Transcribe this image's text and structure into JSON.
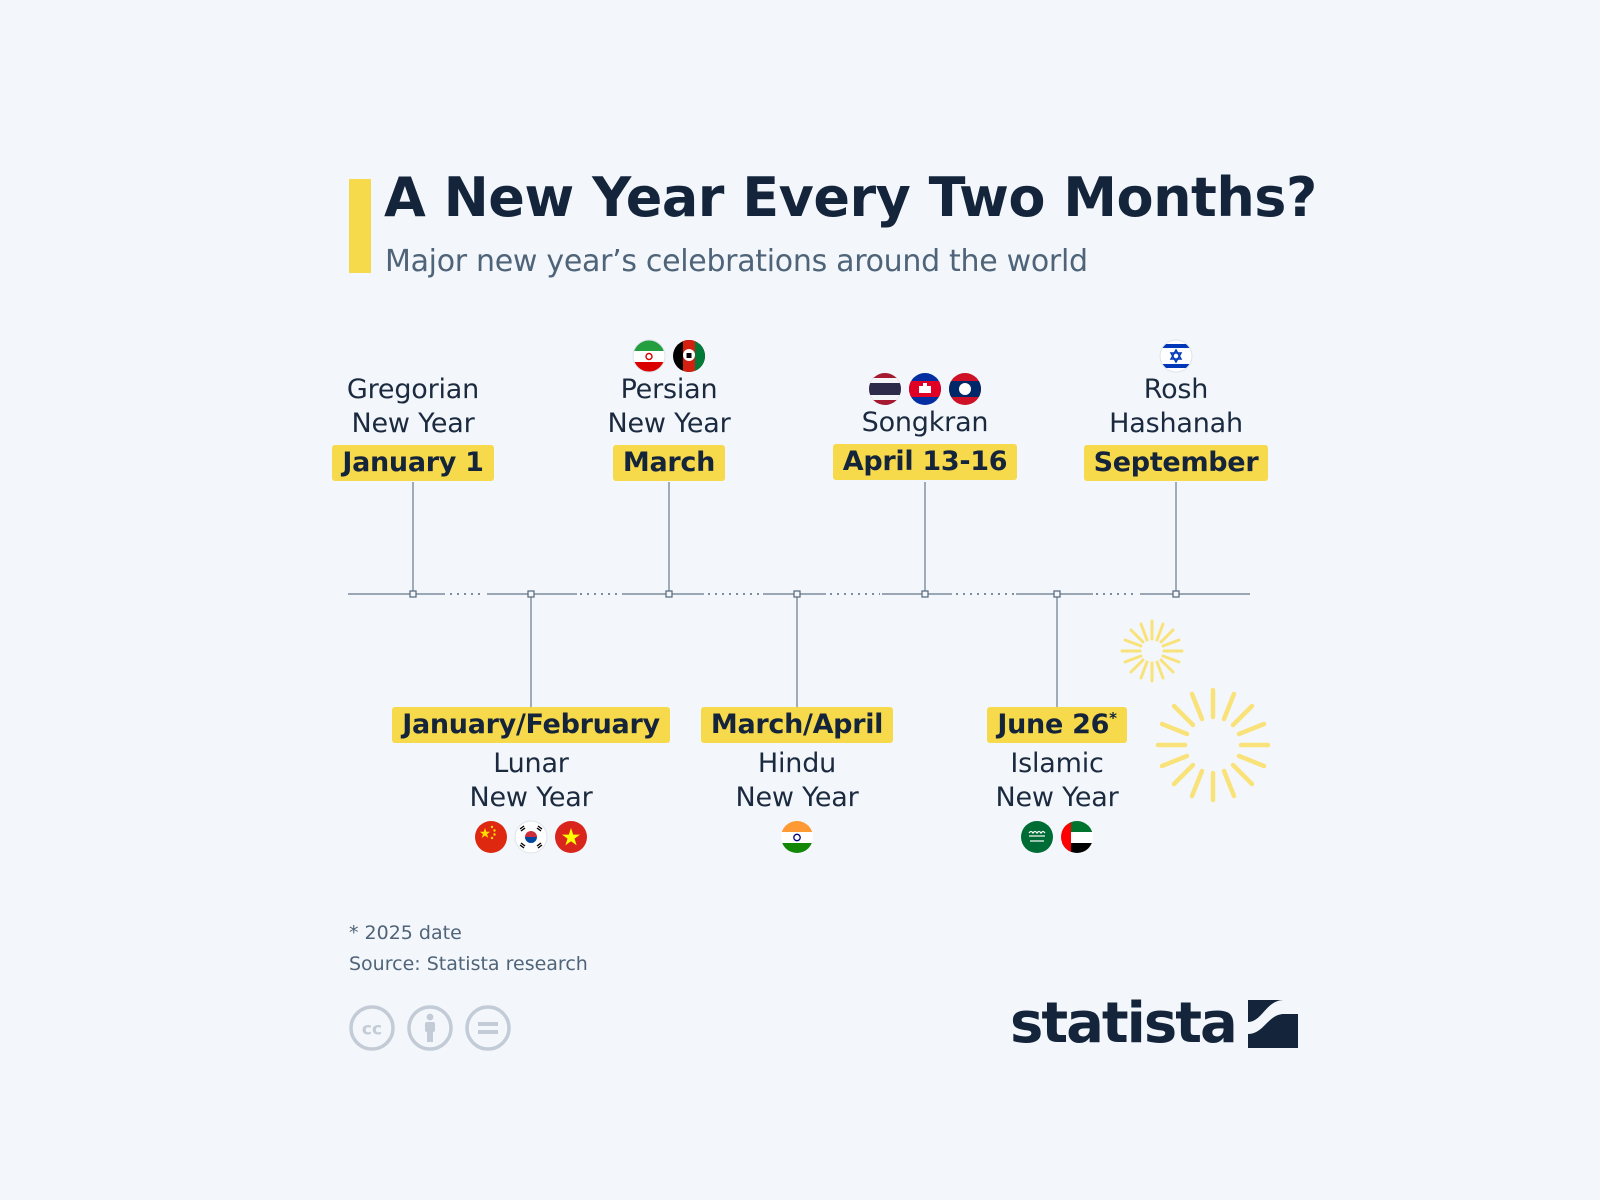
{
  "header": {
    "title": "A New Year Every Two Months?",
    "subtitle": "Major new year’s celebrations around the world"
  },
  "events": [
    {
      "id": "gregorian",
      "name": "Gregorian\nNew Year",
      "date": "January 1",
      "position": "top",
      "flags": []
    },
    {
      "id": "lunar",
      "name": "Lunar\nNew Year",
      "date": "January/February",
      "position": "bottom",
      "flags": [
        "china-flag-icon",
        "south-korea-flag-icon",
        "vietnam-flag-icon"
      ]
    },
    {
      "id": "persian",
      "name": "Persian\nNew Year",
      "date": "March",
      "position": "top",
      "flags": [
        "iran-flag-icon",
        "afghanistan-flag-icon"
      ]
    },
    {
      "id": "hindu",
      "name": "Hindu\nNew Year",
      "date": "March/April",
      "position": "bottom",
      "flags": [
        "india-flag-icon"
      ]
    },
    {
      "id": "songkran",
      "name": "Songkran",
      "date": "April 13-16",
      "position": "top",
      "flags": [
        "thailand-flag-icon",
        "cambodia-flag-icon",
        "laos-flag-icon"
      ]
    },
    {
      "id": "islamic",
      "name": "Islamic\nNew Year",
      "date": "June 26",
      "date_footnote": "*",
      "position": "bottom",
      "flags": [
        "saudi-arabia-flag-icon",
        "uae-flag-icon"
      ]
    },
    {
      "id": "rosh",
      "name": "Rosh\nHashanah",
      "date": "September",
      "position": "top",
      "flags": [
        "israel-flag-icon"
      ]
    }
  ],
  "footer": {
    "footnote": "* 2025 date",
    "source": "Source: Statista research",
    "license_icons": [
      "cc-icon",
      "attribution-icon",
      "no-derivatives-icon"
    ],
    "brand": "statista"
  },
  "colors": {
    "accent": "#f7d94c",
    "navy": "#14243b",
    "background": "#f3f7fb",
    "line": "#8a98a8"
  }
}
